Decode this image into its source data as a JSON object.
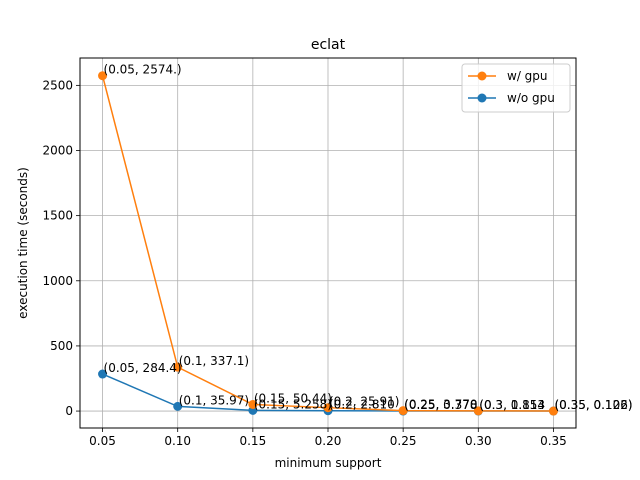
{
  "chart_data": {
    "type": "line",
    "title": "eclat",
    "xlabel": "minimum support",
    "ylabel": "execution time (seconds)",
    "x": [
      0.05,
      0.1,
      0.15,
      0.2,
      0.25,
      0.3,
      0.35
    ],
    "xlim": [
      0.035,
      0.365
    ],
    "ylim": [
      -130,
      2710
    ],
    "xticks": [
      "0.05",
      "0.10",
      "0.15",
      "0.20",
      "0.25",
      "0.30",
      "0.35"
    ],
    "yticks": [
      "0",
      "500",
      "1000",
      "1500",
      "2000",
      "2500"
    ],
    "grid": true,
    "legend_position": "top-right",
    "series": [
      {
        "name": "w/ gpu",
        "color": "#ff7f0e",
        "values": [
          2574.0,
          337.1,
          50.44,
          25.91,
          3.77,
          1.813,
          0.126
        ],
        "labels": [
          "(0.05, 2574.)",
          "(0.1, 337.1)",
          "(0.15, 50.44)",
          "(0.2, 25.91)",
          "(0.25, 3.770",
          "(0.3, 1.813",
          "(0.35, 0.126)"
        ]
      },
      {
        "name": "w/o gpu",
        "color": "#1f77b4",
        "values": [
          284.4,
          35.97,
          5.258,
          2.81,
          0.378,
          0.154,
          0.102
        ],
        "labels": [
          "(0.05, 284.4)",
          "(0.1, 35.97)",
          "(0.15, 5.258)",
          "(0.2, 2.810",
          "(0.25, 0.378",
          "(0.3, 0.154",
          "(0.35, 0.102)"
        ]
      }
    ]
  }
}
